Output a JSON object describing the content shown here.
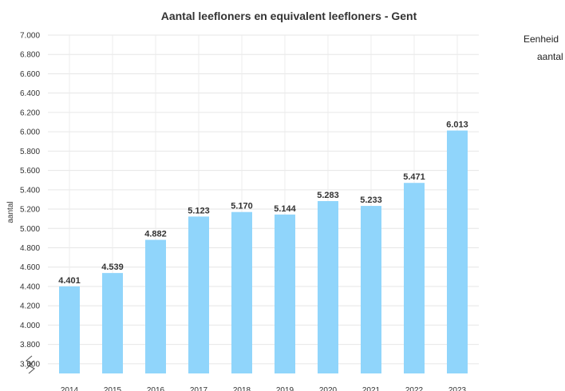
{
  "chart_data": {
    "type": "bar",
    "title": "Aantal leefloners en equivalent leefloners - Gent",
    "xlabel": "",
    "ylabel": "aantal",
    "categories": [
      "2014",
      "2015",
      "2016",
      "2017",
      "2018",
      "2019",
      "2020",
      "2021",
      "2022",
      "2023"
    ],
    "values": [
      4401,
      4539,
      4882,
      5123,
      5170,
      5144,
      5283,
      5233,
      5471,
      6013
    ],
    "data_labels": [
      "4.401",
      "4.539",
      "4.882",
      "5.123",
      "5.170",
      "5.144",
      "5.283",
      "5.233",
      "5.471",
      "6.013"
    ],
    "ylim": [
      3500,
      7000
    ],
    "yticks": [
      3600,
      3800,
      4000,
      4200,
      4400,
      4600,
      4800,
      5000,
      5200,
      5400,
      5600,
      5800,
      6000,
      6200,
      6400,
      6600,
      6800,
      7000
    ],
    "ytick_labels": [
      "3.600",
      "3.800",
      "4.000",
      "4.200",
      "4.400",
      "4.600",
      "4.800",
      "5.000",
      "5.200",
      "5.400",
      "5.600",
      "5.800",
      "6.000",
      "6.200",
      "6.400",
      "6.600",
      "6.800",
      "7.000"
    ],
    "axis_break": true,
    "grid": true,
    "bar_color": "#90d5fb"
  },
  "side_panel": {
    "heading": "Eenheid",
    "unit": "aantal"
  }
}
